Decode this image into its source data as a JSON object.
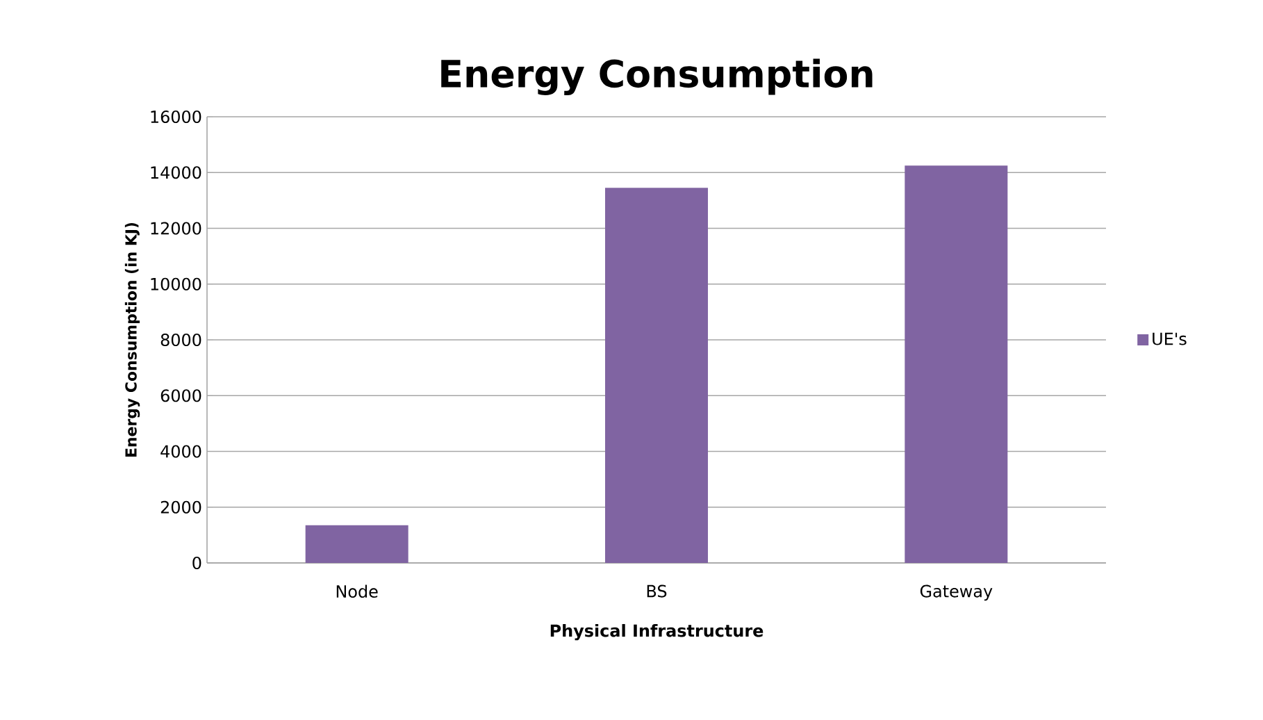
{
  "chart_data": {
    "type": "bar",
    "title": "Energy Consumption",
    "xlabel": "Physical Infrastructure",
    "ylabel": "Energy Consumption  (in KJ)",
    "categories": [
      "Node",
      "BS",
      "Gateway"
    ],
    "series": [
      {
        "name": "UE's",
        "color": "#8064a2",
        "values": [
          1350,
          13450,
          14250
        ]
      }
    ],
    "ylim": [
      0,
      16000
    ],
    "yticks": [
      0,
      2000,
      4000,
      6000,
      8000,
      10000,
      12000,
      14000,
      16000
    ],
    "grid": "y",
    "legend": "right"
  }
}
